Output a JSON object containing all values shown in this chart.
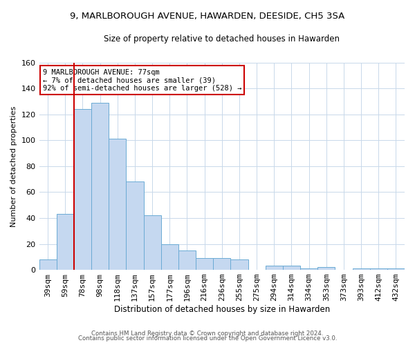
{
  "title": "9, MARLBOROUGH AVENUE, HAWARDEN, DEESIDE, CH5 3SA",
  "subtitle": "Size of property relative to detached houses in Hawarden",
  "xlabel": "Distribution of detached houses by size in Hawarden",
  "ylabel": "Number of detached properties",
  "categories": [
    "39sqm",
    "59sqm",
    "78sqm",
    "98sqm",
    "118sqm",
    "137sqm",
    "157sqm",
    "177sqm",
    "196sqm",
    "216sqm",
    "236sqm",
    "255sqm",
    "275sqm",
    "294sqm",
    "314sqm",
    "334sqm",
    "353sqm",
    "373sqm",
    "393sqm",
    "412sqm",
    "432sqm"
  ],
  "values": [
    8,
    43,
    124,
    129,
    101,
    68,
    42,
    20,
    15,
    9,
    9,
    8,
    0,
    3,
    3,
    1,
    2,
    0,
    1,
    1,
    1
  ],
  "bar_color": "#c5d8f0",
  "bar_edge_color": "#6aaad4",
  "red_line_color": "#cc0000",
  "red_line_x": 1.5,
  "annotation_text": "9 MARLBOROUGH AVENUE: 77sqm\n← 7% of detached houses are smaller (39)\n92% of semi-detached houses are larger (528) →",
  "annotation_box_color": "#ffffff",
  "annotation_box_edge": "#cc0000",
  "ylim": [
    0,
    160
  ],
  "yticks": [
    0,
    20,
    40,
    60,
    80,
    100,
    120,
    140,
    160
  ],
  "footer1": "Contains HM Land Registry data © Crown copyright and database right 2024.",
  "footer2": "Contains public sector information licensed under the Open Government Licence v3.0.",
  "bg_color": "#ffffff",
  "grid_color": "#c8d8ea",
  "title_fontsize": 9.5,
  "subtitle_fontsize": 8.5
}
